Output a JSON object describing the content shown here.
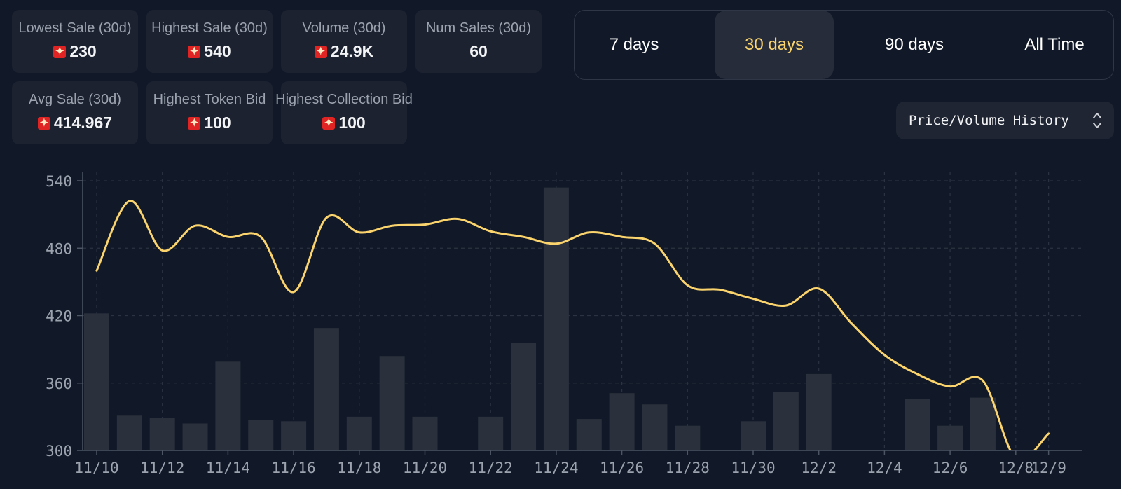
{
  "stats": [
    {
      "label": "Lowest Sale (30d)",
      "value": "230",
      "icon": "red-coin-icon"
    },
    {
      "label": "Highest Sale (30d)",
      "value": "540",
      "icon": "red-coin-icon"
    },
    {
      "label": "Volume (30d)",
      "value": "24.9K",
      "icon": "red-coin-icon"
    },
    {
      "label": "Num Sales (30d)",
      "value": "60"
    },
    {
      "label": "Avg Sale (30d)",
      "value": "414.967",
      "icon": "red-coin-icon"
    },
    {
      "label": "Highest Token Bid",
      "value": "100",
      "icon": "red-coin-icon"
    },
    {
      "label": "Highest Collection Bid",
      "value": "100",
      "icon": "red-coin-icon"
    }
  ],
  "range_tabs": [
    {
      "label": "7 days",
      "active": false
    },
    {
      "label": "30 days",
      "active": true
    },
    {
      "label": "90 days",
      "active": false
    },
    {
      "label": "All Time",
      "active": false
    }
  ],
  "view_select": {
    "value": "Price/Volume History"
  },
  "colors": {
    "background": "#111827",
    "accent": "#fbd46d",
    "bar": "#2a303c",
    "grid": "#2b3342"
  },
  "chart_data": {
    "type": "bar",
    "title": "",
    "xlabel": "",
    "ylabel": "",
    "ylim": [
      300,
      540
    ],
    "y_ticks": [
      300,
      360,
      420,
      480,
      540
    ],
    "x_tick_labels": [
      "11/10",
      "11/12",
      "11/14",
      "11/16",
      "11/18",
      "11/20",
      "11/22",
      "11/24",
      "11/26",
      "11/28",
      "11/30",
      "12/2",
      "12/4",
      "12/6",
      "12/8",
      "12/9"
    ],
    "grid": true,
    "categories": [
      "11/10",
      "11/11",
      "11/12",
      "11/13",
      "11/14",
      "11/15",
      "11/16",
      "11/17",
      "11/18",
      "11/19",
      "11/20",
      "11/21",
      "11/22",
      "11/23",
      "11/24",
      "11/25",
      "11/26",
      "11/27",
      "11/28",
      "11/29",
      "11/30",
      "12/1",
      "12/2",
      "12/3",
      "12/4",
      "12/5",
      "12/6",
      "12/7",
      "12/8",
      "12/9"
    ],
    "series": [
      {
        "type": "bar",
        "values": [
          422,
          331,
          329,
          324,
          379,
          327,
          326,
          409,
          330,
          384,
          330,
          null,
          330,
          396,
          534,
          328,
          351,
          341,
          322,
          null,
          326,
          352,
          368,
          null,
          null,
          346,
          322,
          347,
          null,
          null
        ]
      },
      {
        "type": "line",
        "values": [
          460,
          522,
          478,
          500,
          490,
          490,
          441,
          507,
          494,
          500,
          501,
          506,
          495,
          490,
          484,
          494,
          490,
          484,
          447,
          443,
          435,
          429,
          444,
          413,
          385,
          368,
          357,
          362,
          293,
          315
        ]
      }
    ]
  }
}
